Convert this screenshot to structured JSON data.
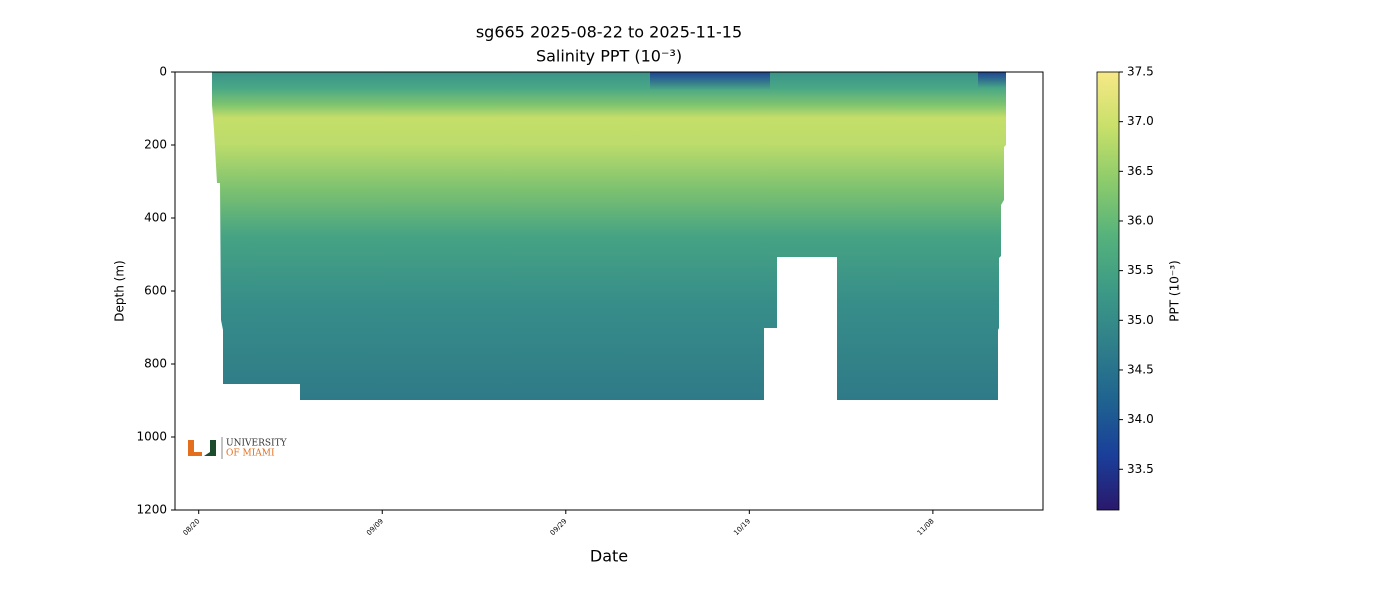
{
  "chart_data": {
    "type": "heatmap",
    "title": "sg665 2025-08-22 to 2025-11-15",
    "subtitle": "Salinity PPT (10⁻³)",
    "x_label": "Date",
    "y_label": "Depth (m)",
    "xlim": [
      "2025-08-17T10:00",
      "2025-11-20T00:00"
    ],
    "xticks": [
      {
        "value": "2025-08-20",
        "label": "08/20"
      },
      {
        "value": "2025-09-09",
        "label": "09/09"
      },
      {
        "value": "2025-09-29",
        "label": "09/29"
      },
      {
        "value": "2025-10-19",
        "label": "10/19"
      },
      {
        "value": "2025-11-08",
        "label": "11/08"
      }
    ],
    "ylim": [
      1200,
      0
    ],
    "yticks": [
      0,
      200,
      400,
      600,
      800,
      1000,
      1200
    ],
    "colorbar_label": "PPT (10⁻³)",
    "clim": [
      33.09,
      37.5
    ],
    "colorbar_ticks": [
      33.5,
      {
        "value": 34,
        "label": "34.0"
      },
      34.5,
      {
        "value": 35,
        "label": "35.0"
      },
      35.5,
      {
        "value": 36,
        "label": "36.0"
      },
      36.5,
      {
        "value": 37,
        "label": "37.0"
      },
      37.5
    ],
    "colormap": [
      "#2a186c",
      "#1a3f9a",
      "#1f6390",
      "#2f7f8a",
      "#3c9a86",
      "#55b27c",
      "#8ccb6b",
      "#c8e06a",
      "#f7e887"
    ],
    "logo": [
      "UNIVERSITY",
      "OF MIAMI"
    ]
  }
}
